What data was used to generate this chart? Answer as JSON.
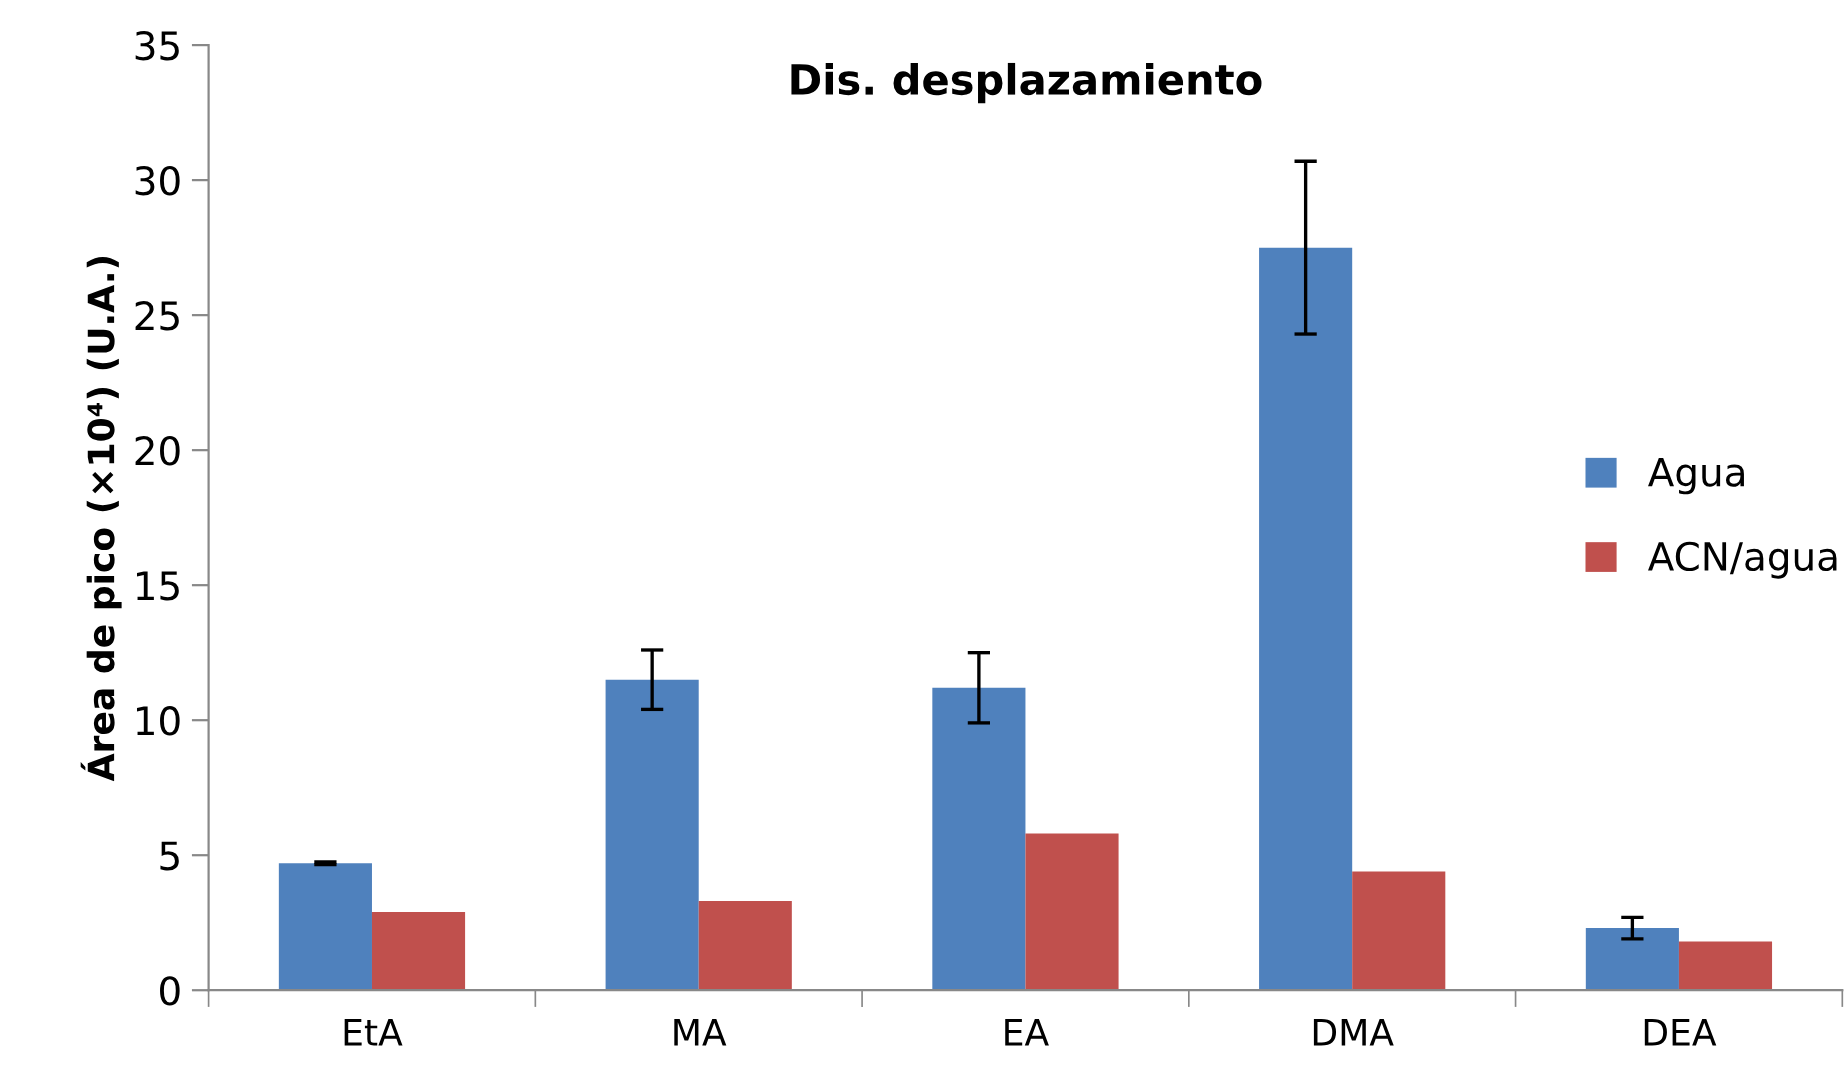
{
  "chart_data": {
    "type": "bar",
    "title": "Dis. desplazamiento",
    "ylabel": "Área de pico (×10⁴) (U.A.)",
    "categories": [
      "EtA",
      "MA",
      "EA",
      "DMA",
      "DEA"
    ],
    "series": [
      {
        "name": "Agua",
        "color": "#4f81bd",
        "values": [
          4.7,
          11.5,
          11.2,
          27.5,
          2.3
        ],
        "errors": [
          0.05,
          1.1,
          1.3,
          3.2,
          0.4
        ]
      },
      {
        "name": "ACN/agua",
        "color": "#c0504d",
        "values": [
          2.9,
          3.3,
          5.8,
          4.4,
          1.8
        ]
      }
    ],
    "ylim": [
      0,
      35
    ],
    "yticks": [
      0,
      5,
      10,
      15,
      20,
      25,
      30,
      35
    ],
    "grid": false,
    "legend": "right"
  }
}
